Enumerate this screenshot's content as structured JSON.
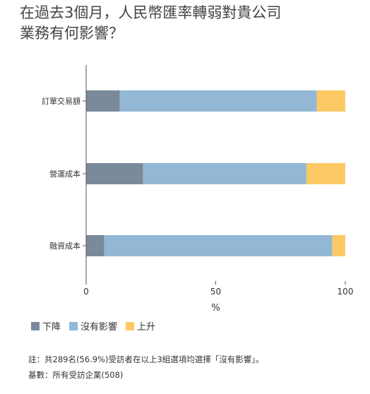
{
  "title_lines": [
    "在過去3個月，人民幣匯率轉弱對貴公司",
    "業務有何影響？"
  ],
  "chart_data": {
    "type": "bar",
    "orientation": "horizontal",
    "stacked": true,
    "categories": [
      "訂單交易額",
      "營運成本",
      "融資成本"
    ],
    "series": [
      {
        "name": "下降",
        "color": "#7a8a9a",
        "values": [
          13,
          22,
          7
        ]
      },
      {
        "name": "沒有影響",
        "color": "#93b8d6",
        "values": [
          76,
          63,
          88
        ]
      },
      {
        "name": "上升",
        "color": "#fdc964",
        "values": [
          11,
          15,
          5
        ]
      }
    ],
    "xlabel": "%",
    "xlim": [
      0,
      100
    ],
    "xticks": [
      0,
      50,
      100
    ],
    "grid": false,
    "legend_position": "bottom-left"
  },
  "notes": {
    "footnote": "註：共289名(56.9%)受訪者在以上3組選項均選擇「沒有影響」。",
    "base": "基數：所有受訪企業(508)"
  }
}
